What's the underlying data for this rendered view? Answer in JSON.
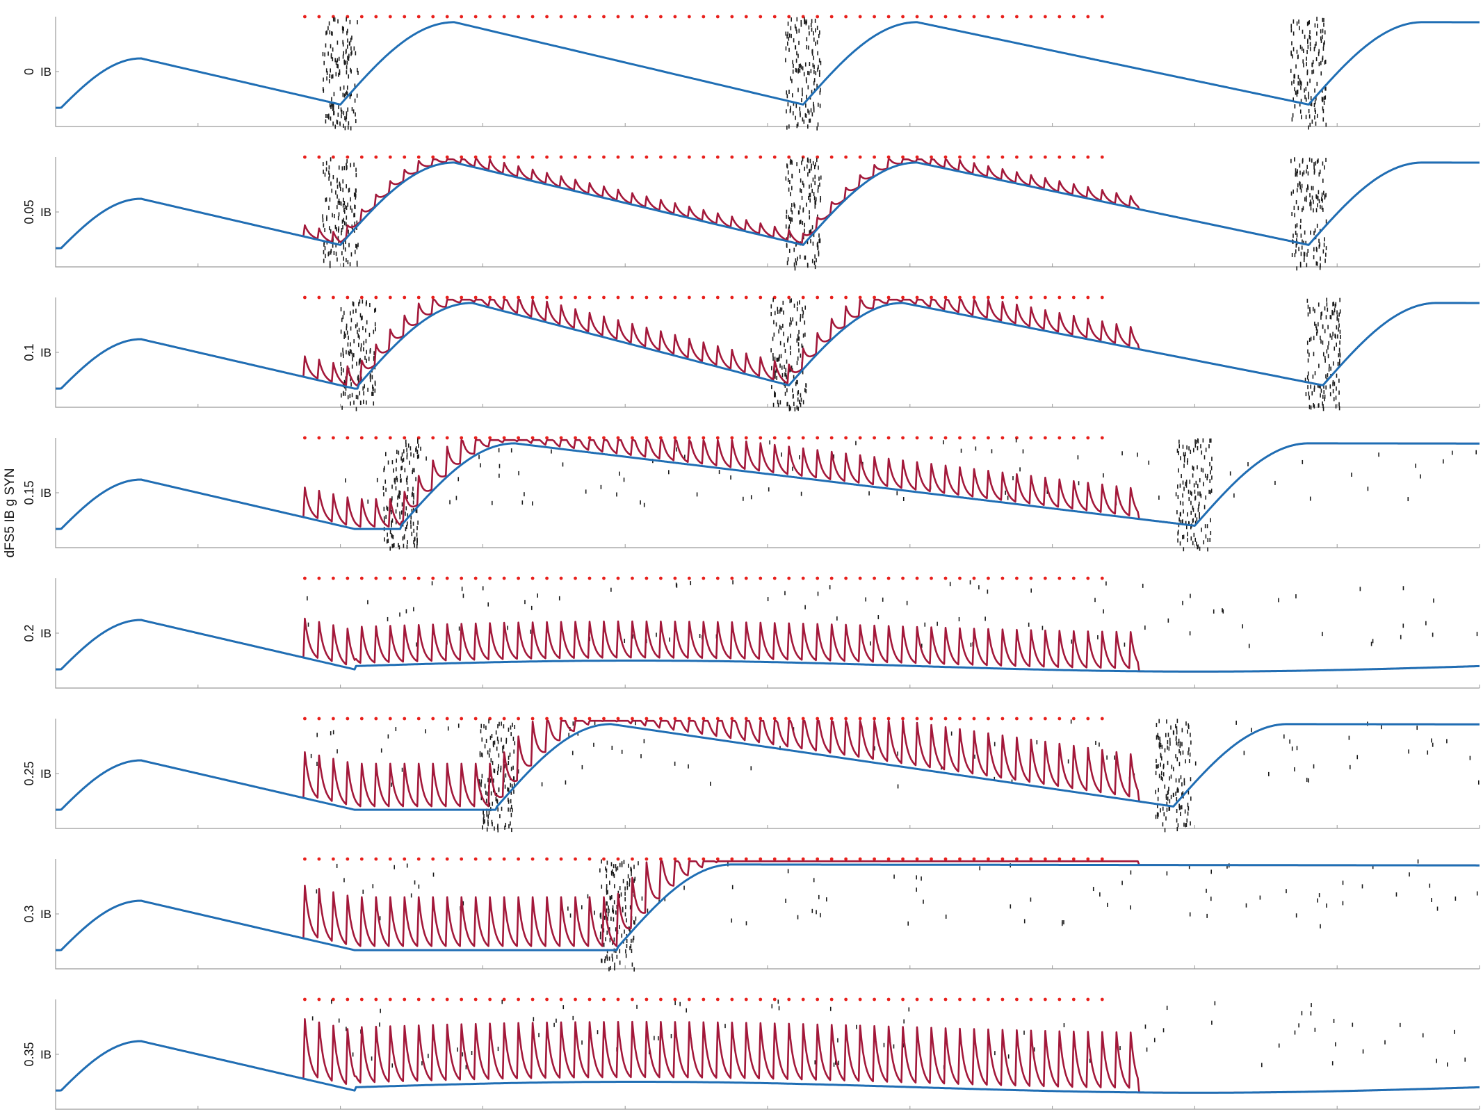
{
  "figure": {
    "ylabel": "dFS5 IB g SYN",
    "colors": {
      "background": "#ffffff",
      "axis": "#9a9a9a",
      "blue_trace": "#1f6eb4",
      "red_trace": "#a3183a",
      "raster": "#1a1a1a",
      "stim_dots": "#e8201c"
    }
  },
  "chart_data": [
    {
      "type": "line",
      "panel_label": "0",
      "ytick_label": "IB",
      "xlim": [
        0,
        2000
      ],
      "stim_dots": {
        "start": 350,
        "stop": 1480,
        "interval": 20
      },
      "bursts_blue": [
        400,
        1050,
        1760
      ],
      "red_peak_scale": 0.0
    },
    {
      "type": "line",
      "panel_label": "0.05",
      "ytick_label": "IB",
      "xlim": [
        0,
        2000
      ],
      "stim_dots": {
        "start": 350,
        "stop": 1480,
        "interval": 20
      },
      "bursts_blue": [
        400,
        1050,
        1760
      ],
      "red_peak_scale": 0.25
    },
    {
      "type": "line",
      "panel_label": "0.1",
      "ytick_label": "IB",
      "xlim": [
        0,
        2000
      ],
      "stim_dots": {
        "start": 350,
        "stop": 1480,
        "interval": 20
      },
      "bursts_blue": [
        425,
        1030,
        1780
      ],
      "red_peak_scale": 0.45
    },
    {
      "type": "line",
      "panel_label": "0.15",
      "ytick_label": "IB",
      "xlim": [
        0,
        2000
      ],
      "stim_dots": {
        "start": 350,
        "stop": 1480,
        "interval": 20
      },
      "bursts_blue": [
        485,
        1600
      ],
      "red_peak_scale": 0.65
    },
    {
      "type": "line",
      "panel_label": "0.2",
      "ytick_label": "IB",
      "xlim": [
        0,
        2000
      ],
      "stim_dots": {
        "start": 350,
        "stop": 1480,
        "interval": 20
      },
      "bursts_blue": [],
      "red_peak_scale": 0.85
    },
    {
      "type": "line",
      "panel_label": "0.25",
      "ytick_label": "IB",
      "xlim": [
        0,
        2000
      ],
      "stim_dots": {
        "start": 350,
        "stop": 1480,
        "interval": 20
      },
      "bursts_blue": [
        620,
        1570
      ],
      "red_peak_scale": 1.0
    },
    {
      "type": "line",
      "panel_label": "0.3",
      "ytick_label": "IB",
      "xlim": [
        0,
        2000
      ],
      "stim_dots": {
        "start": 350,
        "stop": 1480,
        "interval": 20
      },
      "bursts_blue": [
        790
      ],
      "red_peak_scale": 1.15
    },
    {
      "type": "line",
      "panel_label": "0.35",
      "ytick_label": "IB",
      "xlim": [
        0,
        2000
      ],
      "stim_dots": {
        "start": 350,
        "stop": 1480,
        "interval": 20
      },
      "bursts_blue": [],
      "red_peak_scale": 1.3
    }
  ]
}
